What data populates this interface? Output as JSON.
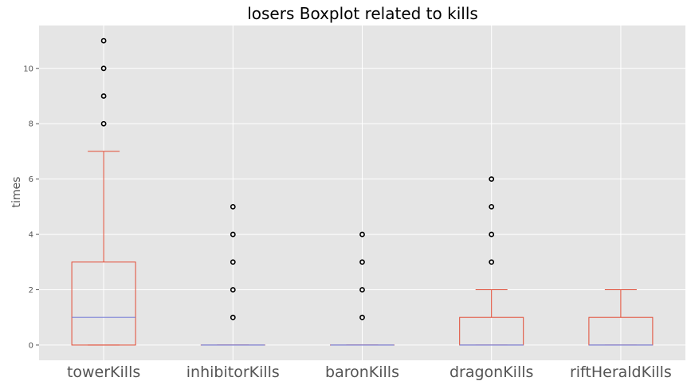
{
  "chart_data": {
    "type": "boxplot",
    "title": "losers Boxplot related to kills",
    "xlabel": "",
    "ylabel": "times",
    "ylim": [
      -0.55,
      11.55
    ],
    "yticks": [
      0,
      2,
      4,
      6,
      8,
      10
    ],
    "grid": true,
    "colors": {
      "background": "#e5e5e5",
      "grid": "#ffffff",
      "box": "#e24a33",
      "median": "#7a80d6",
      "flier": "#000000"
    },
    "categories": [
      "towerKills",
      "inhibitorKills",
      "baronKills",
      "dragonKills",
      "riftHeraldKills"
    ],
    "boxes": [
      {
        "name": "towerKills",
        "whisker_low": 0,
        "q1": 0,
        "median": 1,
        "q3": 3,
        "whisker_high": 7,
        "fliers": [
          8,
          9,
          10,
          11
        ]
      },
      {
        "name": "inhibitorKills",
        "whisker_low": 0,
        "q1": 0,
        "median": 0,
        "q3": 0,
        "whisker_high": 0,
        "fliers": [
          1,
          2,
          3,
          4,
          5
        ]
      },
      {
        "name": "baronKills",
        "whisker_low": 0,
        "q1": 0,
        "median": 0,
        "q3": 0,
        "whisker_high": 0,
        "fliers": [
          1,
          2,
          3,
          4
        ]
      },
      {
        "name": "dragonKills",
        "whisker_low": 0,
        "q1": 0,
        "median": 0,
        "q3": 1,
        "whisker_high": 2,
        "fliers": [
          3,
          4,
          5,
          6
        ]
      },
      {
        "name": "riftHeraldKills",
        "whisker_low": 0,
        "q1": 0,
        "median": 0,
        "q3": 1,
        "whisker_high": 2,
        "fliers": []
      }
    ]
  }
}
